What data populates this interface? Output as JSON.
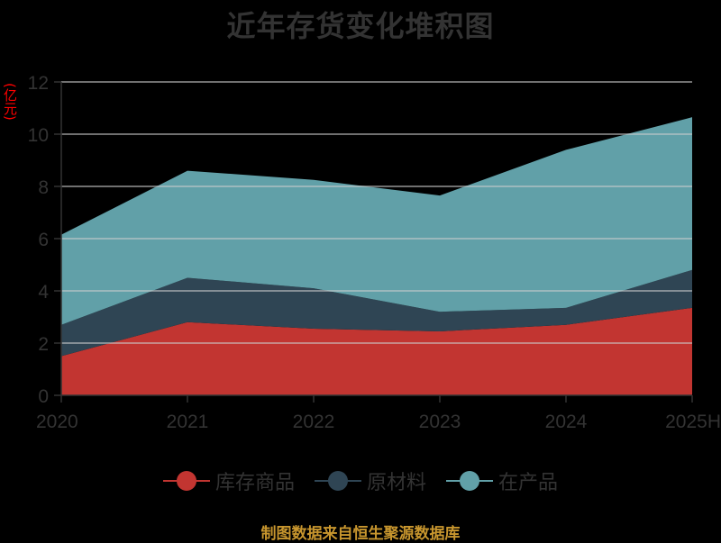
{
  "title": "近年存货变化堆积图",
  "unit_label": "(亿元)",
  "source": "制图数据来自恒生聚源数据库",
  "colors": {
    "库存商品": "#c23531",
    "原材料": "#2f4554",
    "在产品": "#61a0a8",
    "axis": "#333333",
    "grid": "#cccccc",
    "source": "#c8962e",
    "unit": "#ff0000"
  },
  "legend": [
    {
      "label": "库存商品",
      "color": "#c23531"
    },
    {
      "label": "原材料",
      "color": "#2f4554"
    },
    {
      "label": "在产品",
      "color": "#61a0a8"
    }
  ],
  "chart_data": {
    "type": "area",
    "stacked": true,
    "title": "近年存货变化堆积图",
    "xlabel": "",
    "ylabel": "(亿元)",
    "categories": [
      "2020",
      "2021",
      "2022",
      "2023",
      "2024",
      "2025H"
    ],
    "series": [
      {
        "name": "库存商品",
        "values": [
          1.5,
          2.8,
          2.55,
          2.45,
          2.7,
          3.35
        ]
      },
      {
        "name": "原材料",
        "values": [
          1.2,
          1.7,
          1.55,
          0.75,
          0.65,
          1.45
        ]
      },
      {
        "name": "在产品",
        "values": [
          3.45,
          4.1,
          4.15,
          4.45,
          6.05,
          5.85
        ]
      }
    ],
    "ylim": [
      0,
      12
    ],
    "yticks": [
      0,
      2,
      4,
      6,
      8,
      10,
      12
    ],
    "grid": true,
    "legend_position": "bottom"
  }
}
